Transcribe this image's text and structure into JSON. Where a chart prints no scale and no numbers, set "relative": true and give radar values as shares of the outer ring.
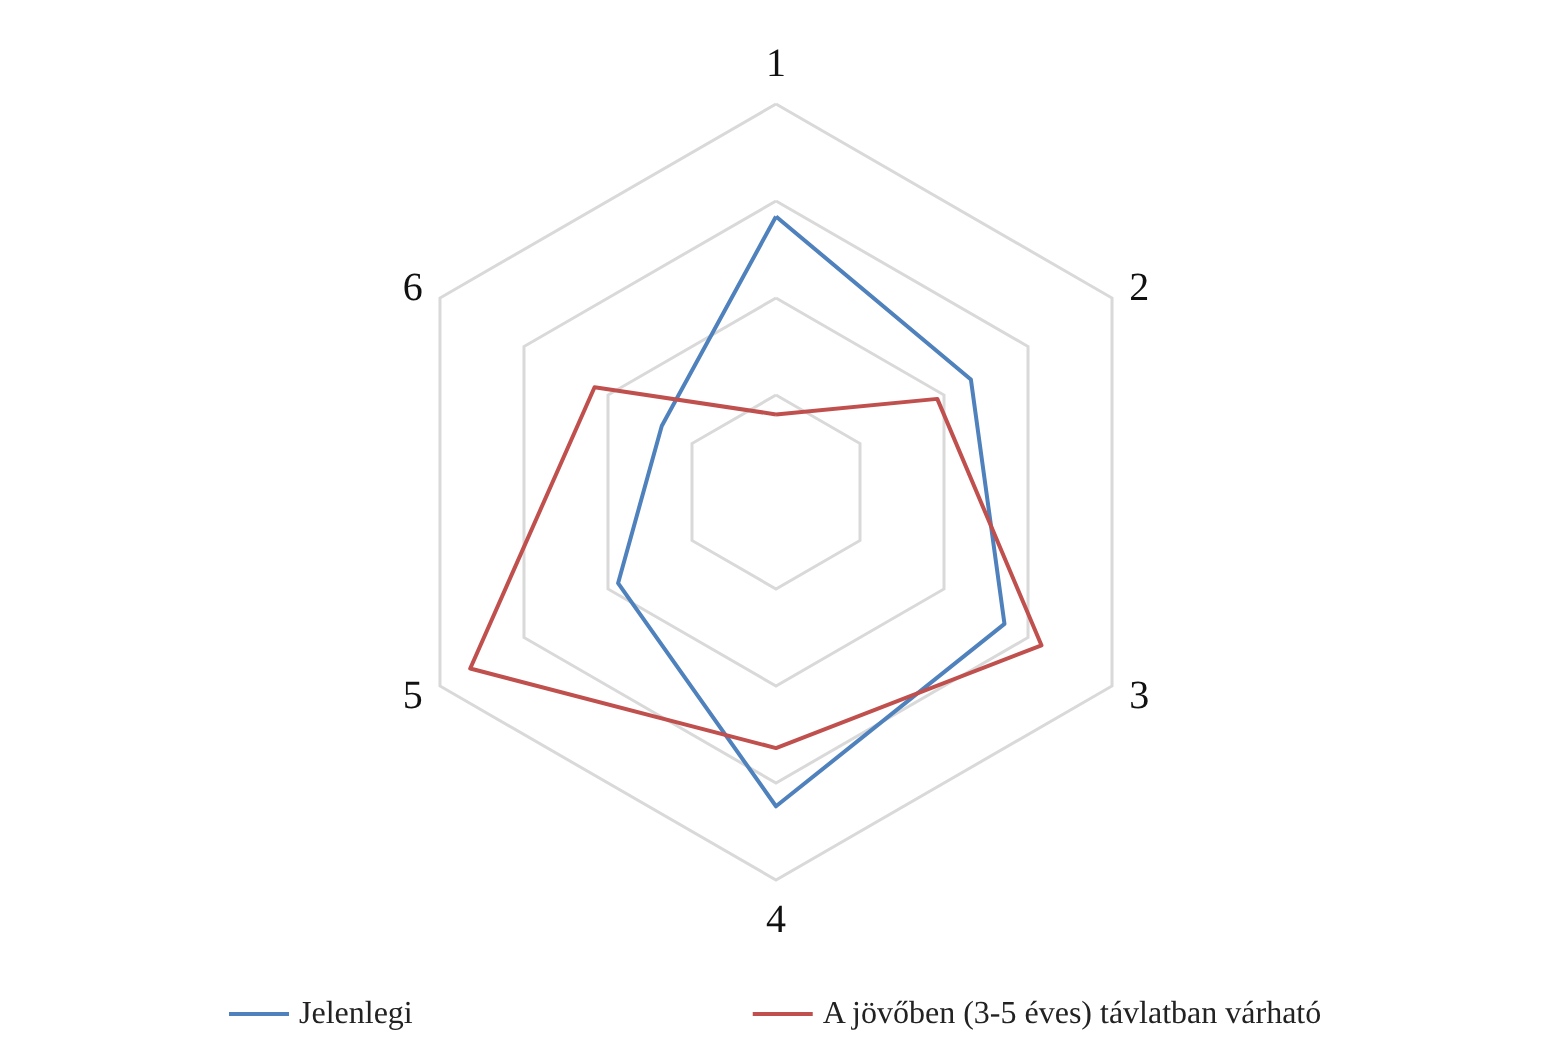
{
  "chart_data": {
    "type": "radar",
    "relative": true,
    "grid": true,
    "legend": "bottom",
    "marker": "none",
    "categories": [
      "1",
      "2",
      "3",
      "4",
      "5",
      "6"
    ],
    "series": [
      {
        "name": "Jelenlegi",
        "color": "#4f81bd",
        "values": [
          0.71,
          0.58,
          0.68,
          0.81,
          0.47,
          0.34
        ]
      },
      {
        "name": "A jövőben (3-5 éves) távlatban várható",
        "color": "#c0504d",
        "values": [
          0.2,
          0.48,
          0.79,
          0.66,
          0.91,
          0.54
        ]
      }
    ]
  }
}
